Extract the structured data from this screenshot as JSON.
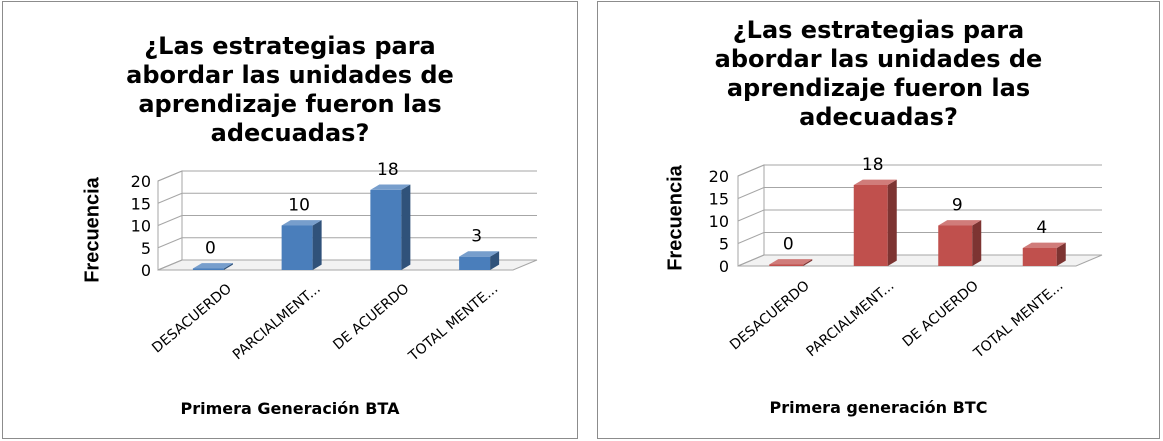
{
  "chart_data": [
    {
      "type": "bar",
      "title": "¿Las estrategias para abordar las unidades de aprendizaje fueron las adecuadas?",
      "title_lines": [
        "¿Las estrategias para",
        "abordar las unidades de",
        "aprendizaje fueron las",
        "adecuadas?"
      ],
      "xlabel": "Primera Generación BTA",
      "ylabel": "Frecuencia",
      "categories": [
        "DESACUERDO",
        "PARCIALMENT...",
        "DE ACUERDO",
        "TOTAL MENTE..."
      ],
      "values": [
        0,
        10,
        18,
        3
      ],
      "data_labels": [
        "0",
        "10",
        "18",
        "3"
      ],
      "yticks": [
        "0",
        "5",
        "10",
        "15",
        "20"
      ],
      "ylim": [
        0,
        20
      ],
      "grid": true,
      "legend": "none",
      "style": "3d-column",
      "color": "#4a7ebb"
    },
    {
      "type": "bar",
      "title": "¿Las estrategias para abordar las unidades de aprendizaje fueron las adecuadas?",
      "title_lines": [
        "¿Las estrategias para",
        "abordar las unidades de",
        "aprendizaje fueron las",
        "adecuadas?"
      ],
      "xlabel": "Primera generación BTC",
      "ylabel": "Frecuencia",
      "categories": [
        "DESACUERDO",
        "PARCIALMENT...",
        "DE ACUERDO",
        "TOTAL MENTE..."
      ],
      "values": [
        0,
        18,
        9,
        4
      ],
      "data_labels": [
        "0",
        "18",
        "9",
        "4"
      ],
      "yticks": [
        "0",
        "5",
        "10",
        "15",
        "20"
      ],
      "ylim": [
        0,
        20
      ],
      "grid": true,
      "legend": "none",
      "style": "3d-column",
      "color": "#c0504d"
    }
  ]
}
